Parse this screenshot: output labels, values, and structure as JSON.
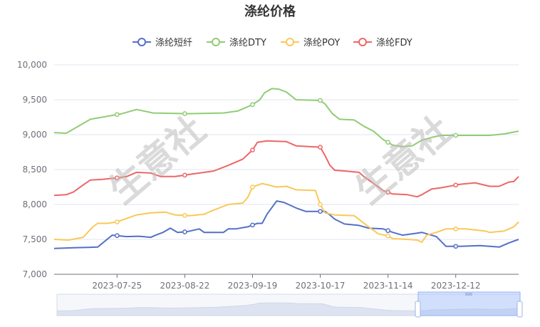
{
  "chart_data": {
    "type": "line",
    "title": "涤纶价格",
    "x_ticks": [
      "2023-07-25",
      "2023-08-22",
      "2023-09-19",
      "2023-10-17",
      "2023-11-14",
      "2023-12-12"
    ],
    "ylim": [
      7000,
      10000
    ],
    "y_ticks": [
      "7,000",
      "7,500",
      "8,000",
      "8,500",
      "9,000",
      "9,500",
      "10,000"
    ],
    "grid": true,
    "legend_position": "top-center",
    "watermark": "生意社",
    "series": [
      {
        "name": "涤纶短纤",
        "color": "#5470c6",
        "points": [
          [
            0,
            7370
          ],
          [
            8,
            7380
          ],
          [
            18,
            7390
          ],
          [
            24,
            7560
          ],
          [
            30,
            7540
          ],
          [
            35,
            7545
          ],
          [
            40,
            7530
          ],
          [
            42,
            7560
          ],
          [
            45,
            7600
          ],
          [
            48,
            7660
          ],
          [
            51,
            7600
          ],
          [
            55,
            7610
          ],
          [
            60,
            7650
          ],
          [
            62,
            7600
          ],
          [
            65,
            7600
          ],
          [
            70,
            7600
          ],
          [
            72,
            7650
          ],
          [
            75,
            7650
          ],
          [
            80,
            7680
          ],
          [
            84,
            7730
          ],
          [
            86,
            7730
          ],
          [
            88,
            7860
          ],
          [
            92,
            8050
          ],
          [
            95,
            8030
          ],
          [
            100,
            7950
          ],
          [
            104,
            7900
          ],
          [
            112,
            7900
          ],
          [
            114,
            7850
          ],
          [
            116,
            7790
          ],
          [
            120,
            7720
          ],
          [
            126,
            7700
          ],
          [
            130,
            7660
          ],
          [
            136,
            7650
          ],
          [
            140,
            7600
          ],
          [
            144,
            7560
          ],
          [
            148,
            7580
          ],
          [
            152,
            7600
          ],
          [
            158,
            7540
          ],
          [
            162,
            7400
          ],
          [
            168,
            7400
          ],
          [
            176,
            7410
          ],
          [
            180,
            7400
          ],
          [
            184,
            7390
          ],
          [
            188,
            7450
          ],
          [
            192,
            7500
          ]
        ]
      },
      {
        "name": "涤纶DTY",
        "color": "#91cc75",
        "points": [
          [
            0,
            9030
          ],
          [
            5,
            9020
          ],
          [
            15,
            9220
          ],
          [
            28,
            9300
          ],
          [
            34,
            9360
          ],
          [
            41,
            9310
          ],
          [
            55,
            9300
          ],
          [
            70,
            9310
          ],
          [
            76,
            9340
          ],
          [
            82,
            9430
          ],
          [
            85,
            9500
          ],
          [
            87,
            9600
          ],
          [
            90,
            9660
          ],
          [
            93,
            9650
          ],
          [
            96,
            9610
          ],
          [
            100,
            9500
          ],
          [
            110,
            9490
          ],
          [
            112,
            9440
          ],
          [
            115,
            9300
          ],
          [
            118,
            9220
          ],
          [
            124,
            9210
          ],
          [
            128,
            9120
          ],
          [
            132,
            9050
          ],
          [
            136,
            8930
          ],
          [
            140,
            8850
          ],
          [
            144,
            8830
          ],
          [
            148,
            8840
          ],
          [
            152,
            8920
          ],
          [
            156,
            8960
          ],
          [
            160,
            8990
          ],
          [
            170,
            8990
          ],
          [
            180,
            8990
          ],
          [
            186,
            9010
          ],
          [
            192,
            9050
          ]
        ]
      },
      {
        "name": "涤纶POY",
        "color": "#fac858",
        "points": [
          [
            0,
            7500
          ],
          [
            6,
            7490
          ],
          [
            12,
            7530
          ],
          [
            16,
            7680
          ],
          [
            18,
            7730
          ],
          [
            22,
            7730
          ],
          [
            26,
            7750
          ],
          [
            30,
            7800
          ],
          [
            34,
            7850
          ],
          [
            40,
            7880
          ],
          [
            46,
            7890
          ],
          [
            50,
            7850
          ],
          [
            56,
            7840
          ],
          [
            62,
            7860
          ],
          [
            66,
            7920
          ],
          [
            72,
            8000
          ],
          [
            78,
            8020
          ],
          [
            80,
            8100
          ],
          [
            82,
            8250
          ],
          [
            86,
            8300
          ],
          [
            92,
            8250
          ],
          [
            96,
            8260
          ],
          [
            100,
            8210
          ],
          [
            108,
            8200
          ],
          [
            110,
            8000
          ],
          [
            112,
            7880
          ],
          [
            116,
            7850
          ],
          [
            124,
            7840
          ],
          [
            130,
            7680
          ],
          [
            134,
            7580
          ],
          [
            138,
            7550
          ],
          [
            140,
            7510
          ],
          [
            146,
            7500
          ],
          [
            150,
            7490
          ],
          [
            152,
            7460
          ],
          [
            154,
            7560
          ],
          [
            158,
            7600
          ],
          [
            162,
            7650
          ],
          [
            170,
            7650
          ],
          [
            178,
            7620
          ],
          [
            180,
            7600
          ],
          [
            186,
            7620
          ],
          [
            190,
            7680
          ],
          [
            192,
            7750
          ]
        ]
      },
      {
        "name": "涤纶FDY",
        "color": "#ee6666",
        "points": [
          [
            0,
            8130
          ],
          [
            5,
            8140
          ],
          [
            8,
            8180
          ],
          [
            12,
            8280
          ],
          [
            15,
            8350
          ],
          [
            20,
            8360
          ],
          [
            26,
            8380
          ],
          [
            30,
            8400
          ],
          [
            34,
            8460
          ],
          [
            40,
            8450
          ],
          [
            44,
            8400
          ],
          [
            50,
            8400
          ],
          [
            54,
            8420
          ],
          [
            60,
            8450
          ],
          [
            66,
            8480
          ],
          [
            72,
            8560
          ],
          [
            78,
            8650
          ],
          [
            82,
            8780
          ],
          [
            84,
            8890
          ],
          [
            88,
            8910
          ],
          [
            96,
            8900
          ],
          [
            100,
            8840
          ],
          [
            110,
            8820
          ],
          [
            112,
            8700
          ],
          [
            114,
            8560
          ],
          [
            116,
            8490
          ],
          [
            120,
            8480
          ],
          [
            126,
            8460
          ],
          [
            128,
            8400
          ],
          [
            132,
            8300
          ],
          [
            136,
            8200
          ],
          [
            140,
            8150
          ],
          [
            146,
            8140
          ],
          [
            150,
            8110
          ],
          [
            152,
            8140
          ],
          [
            156,
            8220
          ],
          [
            160,
            8240
          ],
          [
            168,
            8290
          ],
          [
            174,
            8310
          ],
          [
            180,
            8260
          ],
          [
            184,
            8260
          ],
          [
            188,
            8320
          ],
          [
            190,
            8330
          ],
          [
            192,
            8400
          ]
        ]
      }
    ]
  }
}
